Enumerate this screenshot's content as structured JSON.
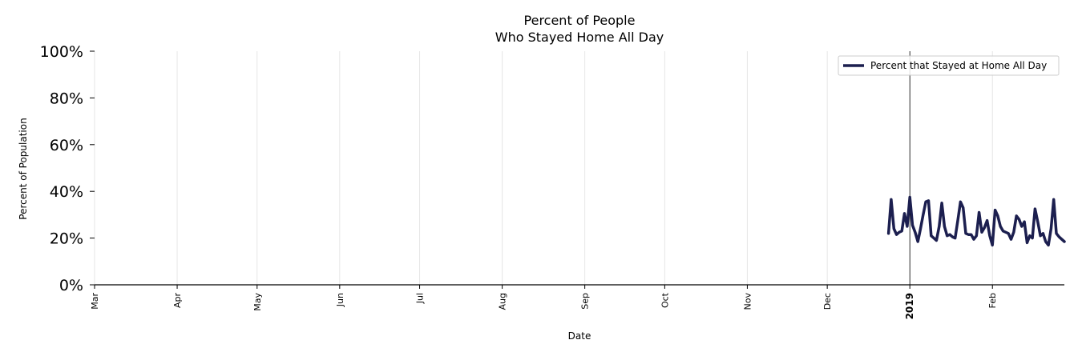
{
  "chart_data": {
    "type": "line",
    "title_line1": "Percent of People",
    "title_line2": "Who Stayed Home All Day",
    "xlabel": "Date",
    "ylabel": "Percent of Population",
    "ylim": [
      0,
      100
    ],
    "xlim": [
      "2018-03-01",
      "2019-02-28"
    ],
    "y_ticks": [
      {
        "value": 0,
        "label": "0%"
      },
      {
        "value": 20,
        "label": "20%"
      },
      {
        "value": 40,
        "label": "40%"
      },
      {
        "value": 60,
        "label": "60%"
      },
      {
        "value": 80,
        "label": "80%"
      },
      {
        "value": 100,
        "label": "100%"
      }
    ],
    "x_ticks": [
      {
        "date": "2018-03-01",
        "label": "Mar",
        "bold": false
      },
      {
        "date": "2018-04-01",
        "label": "Apr",
        "bold": false
      },
      {
        "date": "2018-05-01",
        "label": "May",
        "bold": false
      },
      {
        "date": "2018-06-01",
        "label": "Jun",
        "bold": false
      },
      {
        "date": "2018-07-01",
        "label": "Jul",
        "bold": false
      },
      {
        "date": "2018-08-01",
        "label": "Aug",
        "bold": false
      },
      {
        "date": "2018-09-01",
        "label": "Sep",
        "bold": false
      },
      {
        "date": "2018-10-01",
        "label": "Oct",
        "bold": false
      },
      {
        "date": "2018-11-01",
        "label": "Nov",
        "bold": false
      },
      {
        "date": "2018-12-01",
        "label": "Dec",
        "bold": false
      },
      {
        "date": "2019-01-01",
        "label": "2019",
        "bold": true
      },
      {
        "date": "2019-02-01",
        "label": "Feb",
        "bold": false
      }
    ],
    "vline_date": "2019-01-01",
    "grid": "vertical",
    "legend_position": "top-right",
    "series": [
      {
        "name": "Percent that Stayed at Home All Day",
        "color": "#1c1f4f",
        "points": [
          [
            "2018-12-24",
            22.0
          ],
          [
            "2018-12-25",
            36.5
          ],
          [
            "2018-12-26",
            24.0
          ],
          [
            "2018-12-27",
            21.5
          ],
          [
            "2018-12-28",
            22.5
          ],
          [
            "2018-12-29",
            23.0
          ],
          [
            "2018-12-30",
            30.5
          ],
          [
            "2018-12-31",
            25.0
          ],
          [
            "2019-01-01",
            37.5
          ],
          [
            "2019-01-02",
            25.5
          ],
          [
            "2019-01-03",
            22.5
          ],
          [
            "2019-01-04",
            18.5
          ],
          [
            "2019-01-05",
            24.0
          ],
          [
            "2019-01-06",
            30.0
          ],
          [
            "2019-01-07",
            35.5
          ],
          [
            "2019-01-08",
            36.0
          ],
          [
            "2019-01-09",
            21.0
          ],
          [
            "2019-01-10",
            20.0
          ],
          [
            "2019-01-11",
            19.0
          ],
          [
            "2019-01-12",
            25.0
          ],
          [
            "2019-01-13",
            35.0
          ],
          [
            "2019-01-14",
            25.0
          ],
          [
            "2019-01-15",
            21.0
          ],
          [
            "2019-01-16",
            21.5
          ],
          [
            "2019-01-17",
            20.5
          ],
          [
            "2019-01-18",
            20.0
          ],
          [
            "2019-01-19",
            27.5
          ],
          [
            "2019-01-20",
            35.5
          ],
          [
            "2019-01-21",
            33.0
          ],
          [
            "2019-01-22",
            22.0
          ],
          [
            "2019-01-23",
            21.5
          ],
          [
            "2019-01-24",
            21.5
          ],
          [
            "2019-01-25",
            19.5
          ],
          [
            "2019-01-26",
            21.0
          ],
          [
            "2019-01-27",
            31.0
          ],
          [
            "2019-01-28",
            22.5
          ],
          [
            "2019-01-29",
            24.5
          ],
          [
            "2019-01-30",
            27.5
          ],
          [
            "2019-01-31",
            21.0
          ],
          [
            "2019-02-01",
            17.0
          ],
          [
            "2019-02-02",
            32.0
          ],
          [
            "2019-02-03",
            29.5
          ],
          [
            "2019-02-04",
            25.0
          ],
          [
            "2019-02-05",
            23.0
          ],
          [
            "2019-02-06",
            22.5
          ],
          [
            "2019-02-07",
            22.0
          ],
          [
            "2019-02-08",
            19.5
          ],
          [
            "2019-02-09",
            22.5
          ],
          [
            "2019-02-10",
            29.5
          ],
          [
            "2019-02-11",
            28.0
          ],
          [
            "2019-02-12",
            25.0
          ],
          [
            "2019-02-13",
            27.0
          ],
          [
            "2019-02-14",
            18.0
          ],
          [
            "2019-02-15",
            21.0
          ],
          [
            "2019-02-16",
            20.0
          ],
          [
            "2019-02-17",
            32.5
          ],
          [
            "2019-02-18",
            27.0
          ],
          [
            "2019-02-19",
            21.0
          ],
          [
            "2019-02-20",
            22.0
          ],
          [
            "2019-02-21",
            18.5
          ],
          [
            "2019-02-22",
            17.0
          ],
          [
            "2019-02-23",
            24.0
          ],
          [
            "2019-02-24",
            36.5
          ],
          [
            "2019-02-25",
            22.0
          ],
          [
            "2019-02-26",
            20.5
          ],
          [
            "2019-02-27",
            19.5
          ],
          [
            "2019-02-28",
            18.5
          ]
        ]
      }
    ]
  }
}
